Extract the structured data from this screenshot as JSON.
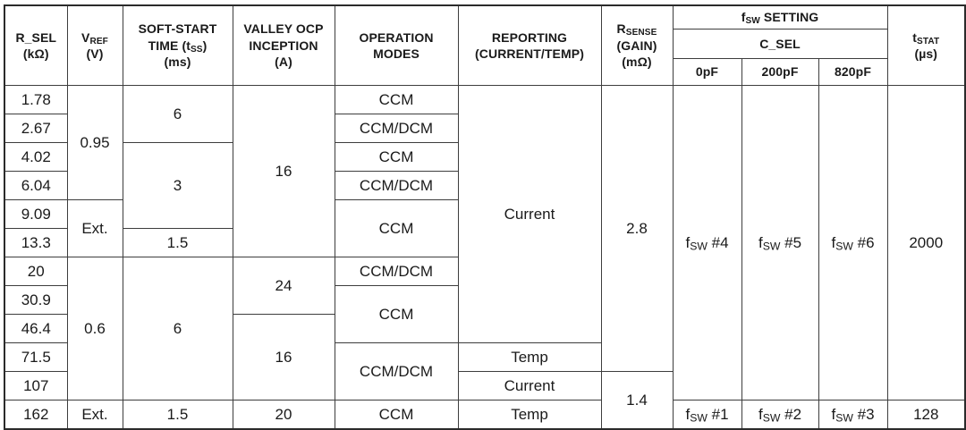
{
  "table": {
    "header_rows": [
      [
        {
          "t": "R_SEL\n(kΩ)",
          "rs": 3,
          "name": "col-header-r-sel"
        },
        {
          "t": "V~REF~\n(V)",
          "rs": 3,
          "name": "col-header-vref"
        },
        {
          "t": "SOFT-START\nTIME (t~SS~)\n(ms)",
          "rs": 3,
          "name": "col-header-soft-start-time"
        },
        {
          "t": "VALLEY OCP\nINCEPTION\n(A)",
          "rs": 3,
          "name": "col-header-valley-ocp-inception"
        },
        {
          "t": "OPERATION\nMODES",
          "rs": 3,
          "name": "col-header-operation-modes"
        },
        {
          "t": "REPORTING\n(CURRENT/TEMP)",
          "rs": 3,
          "name": "col-header-reporting"
        },
        {
          "t": "R~SENSE~\n(GAIN)\n(mΩ)",
          "rs": 3,
          "name": "col-header-rsense-gain"
        },
        {
          "t": "f~SW~ SETTING",
          "cs": 3,
          "name": "col-header-fsw-setting"
        },
        {
          "t": "t~STAT~\n(µs)",
          "rs": 3,
          "name": "col-header-tstat"
        }
      ],
      [
        {
          "t": "C_SEL",
          "cs": 3,
          "name": "col-header-c-sel"
        }
      ],
      [
        {
          "t": "0pF",
          "name": "col-header-c-sel-0pf"
        },
        {
          "t": "200pF",
          "name": "col-header-c-sel-200pf"
        },
        {
          "t": "820pF",
          "name": "col-header-c-sel-820pf"
        }
      ]
    ],
    "body_rows": [
      [
        {
          "t": "1.78"
        },
        {
          "t": "0.95",
          "rs": 4
        },
        {
          "t": "6",
          "rs": 2
        },
        {
          "t": "16",
          "rs": 6
        },
        {
          "t": "CCM"
        },
        {
          "t": "Current",
          "rs": 9
        },
        {
          "t": "2.8",
          "rs": 10
        },
        {
          "t": "f~SW~ #4",
          "rs": 11
        },
        {
          "t": "f~SW~ #5",
          "rs": 11
        },
        {
          "t": "f~SW~ #6",
          "rs": 11
        },
        {
          "t": "2000",
          "rs": 11
        }
      ],
      [
        {
          "t": "2.67"
        },
        {
          "t": "CCM/DCM"
        }
      ],
      [
        {
          "t": "4.02"
        },
        {
          "t": "3",
          "rs": 3
        },
        {
          "t": "CCM"
        }
      ],
      [
        {
          "t": "6.04"
        },
        {
          "t": "CCM/DCM"
        }
      ],
      [
        {
          "t": "9.09"
        },
        {
          "t": "Ext.",
          "rs": 2
        },
        {
          "t": "CCM",
          "rs": 2
        }
      ],
      [
        {
          "t": "13.3"
        },
        {
          "t": "1.5"
        }
      ],
      [
        {
          "t": "20"
        },
        {
          "t": "0.6",
          "rs": 5
        },
        {
          "t": "6",
          "rs": 5
        },
        {
          "t": "24",
          "rs": 2
        },
        {
          "t": "CCM/DCM"
        }
      ],
      [
        {
          "t": "30.9"
        },
        {
          "t": "CCM",
          "rs": 2
        }
      ],
      [
        {
          "t": "46.4"
        },
        {
          "t": "16",
          "rs": 3
        }
      ],
      [
        {
          "t": "71.5"
        },
        {
          "t": "CCM/DCM",
          "rs": 2
        },
        {
          "t": "Temp"
        }
      ],
      [
        {
          "t": "107"
        },
        {
          "t": "Current"
        },
        {
          "t": "1.4",
          "rs": 2
        }
      ],
      [
        {
          "t": "162"
        },
        {
          "t": "Ext."
        },
        {
          "t": "1.5"
        },
        {
          "t": "20"
        },
        {
          "t": "CCM"
        },
        {
          "t": "Temp"
        },
        {
          "t": "f~SW~ #1"
        },
        {
          "t": "f~SW~ #2"
        },
        {
          "t": "f~SW~ #3"
        },
        {
          "t": "128"
        }
      ]
    ]
  },
  "colors": {
    "text": "#1a1a1a",
    "border": "#3d3d3d",
    "outer_border": "#2b2b2b",
    "background": "#ffffff"
  }
}
